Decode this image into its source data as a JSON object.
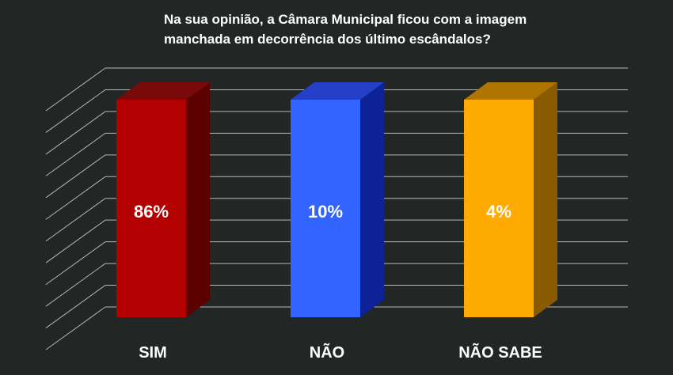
{
  "title_lines": [
    "Na sua opinião, a Câmara Municipal ficou com a imagem",
    "manchada em decorrência dos último escândalos?"
  ],
  "chart_data": {
    "type": "bar",
    "title": "Na sua opinião, a Câmara Municipal ficou com a imagem manchada em decorrência dos último escândalos?",
    "categories": [
      "SIM",
      "NÃO",
      "NÃO SABE"
    ],
    "data_labels": [
      "86%",
      "10%",
      "4%"
    ],
    "values": [
      86,
      10,
      4
    ],
    "colors": [
      {
        "front": "#b30000",
        "side": "#5c0000",
        "top": "#7a0a0a"
      },
      {
        "front": "#3264ff",
        "side": "#0c2296",
        "top": "#2440c8"
      },
      {
        "front": "#ffaa00",
        "side": "#8a5a00",
        "top": "#b07400"
      }
    ],
    "background": "#222625",
    "gridlines": true,
    "style": "3d-column"
  }
}
